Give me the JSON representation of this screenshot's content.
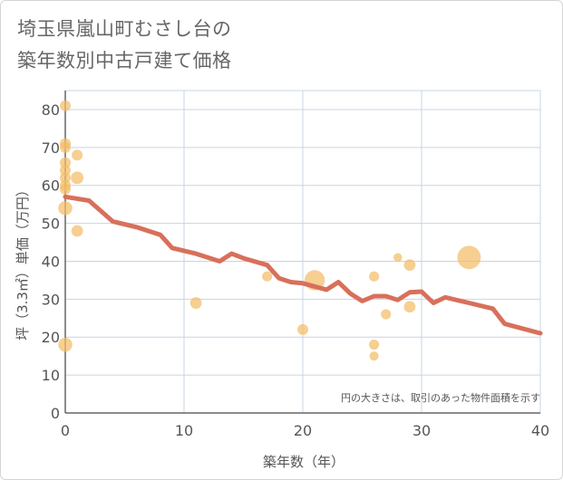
{
  "title_lines": [
    "埼玉県嵐山町むさし台の",
    "築年数別中古戸建て価格"
  ],
  "chart_data": {
    "type": "scatter",
    "title": "埼玉県嵐山町むさし台の築年数別中古戸建て価格",
    "xlabel": "築年数（年）",
    "ylabel": "坪（3.3㎡）単価（万円）",
    "xlim": [
      0,
      40
    ],
    "ylim": [
      0,
      85
    ],
    "x_ticks": [
      "0",
      "10",
      "20",
      "30",
      "40"
    ],
    "y_ticks": [
      "0",
      "10",
      "20",
      "30",
      "40",
      "50",
      "60",
      "70",
      "80"
    ],
    "grid": true,
    "note": "円の大きさは、取引のあった物件面積を示す",
    "colors": {
      "bubble": "#f2bd66",
      "line": "#d8705a",
      "grid": "#c8d4e3"
    },
    "scatter_points": [
      {
        "x": 0,
        "y": 81,
        "size": 1
      },
      {
        "x": 0,
        "y": 71,
        "size": 1
      },
      {
        "x": 0,
        "y": 70,
        "size": 1
      },
      {
        "x": 0,
        "y": 66,
        "size": 1
      },
      {
        "x": 0,
        "y": 64,
        "size": 1
      },
      {
        "x": 0,
        "y": 62,
        "size": 1
      },
      {
        "x": 0,
        "y": 60,
        "size": 1
      },
      {
        "x": 0,
        "y": 59,
        "size": 1
      },
      {
        "x": 0,
        "y": 54,
        "size": 2
      },
      {
        "x": 0,
        "y": 18,
        "size": 2
      },
      {
        "x": 1,
        "y": 68,
        "size": 1
      },
      {
        "x": 1,
        "y": 62,
        "size": 1.5
      },
      {
        "x": 1,
        "y": 48,
        "size": 1.2
      },
      {
        "x": 11,
        "y": 29,
        "size": 1.2
      },
      {
        "x": 17,
        "y": 36,
        "size": 0.8
      },
      {
        "x": 20,
        "y": 22,
        "size": 1
      },
      {
        "x": 21,
        "y": 35,
        "size": 5
      },
      {
        "x": 26,
        "y": 36,
        "size": 0.8
      },
      {
        "x": 26,
        "y": 18,
        "size": 0.8
      },
      {
        "x": 26,
        "y": 15,
        "size": 0.6
      },
      {
        "x": 27,
        "y": 26,
        "size": 0.8
      },
      {
        "x": 28,
        "y": 41,
        "size": 0.5
      },
      {
        "x": 29,
        "y": 39,
        "size": 1.2
      },
      {
        "x": 29,
        "y": 28,
        "size": 1.2
      },
      {
        "x": 34,
        "y": 41,
        "size": 7
      }
    ],
    "trend_line": [
      {
        "x": 0,
        "y": 57
      },
      {
        "x": 2,
        "y": 56
      },
      {
        "x": 4,
        "y": 50.5
      },
      {
        "x": 6,
        "y": 49
      },
      {
        "x": 8,
        "y": 47
      },
      {
        "x": 9,
        "y": 43.5
      },
      {
        "x": 11,
        "y": 42
      },
      {
        "x": 13,
        "y": 40
      },
      {
        "x": 14,
        "y": 42
      },
      {
        "x": 15,
        "y": 40.8
      },
      {
        "x": 17,
        "y": 39
      },
      {
        "x": 18,
        "y": 35.5
      },
      {
        "x": 19,
        "y": 34.5
      },
      {
        "x": 20,
        "y": 34.2
      },
      {
        "x": 22,
        "y": 32.5
      },
      {
        "x": 23,
        "y": 34.5
      },
      {
        "x": 24,
        "y": 31.5
      },
      {
        "x": 25,
        "y": 29.5
      },
      {
        "x": 26,
        "y": 30.8
      },
      {
        "x": 27,
        "y": 30.8
      },
      {
        "x": 28,
        "y": 29.8
      },
      {
        "x": 29,
        "y": 31.8
      },
      {
        "x": 30,
        "y": 32
      },
      {
        "x": 31,
        "y": 29
      },
      {
        "x": 32,
        "y": 30.5
      },
      {
        "x": 34,
        "y": 29
      },
      {
        "x": 36,
        "y": 27.5
      },
      {
        "x": 37,
        "y": 23.5
      },
      {
        "x": 40,
        "y": 21
      }
    ]
  }
}
